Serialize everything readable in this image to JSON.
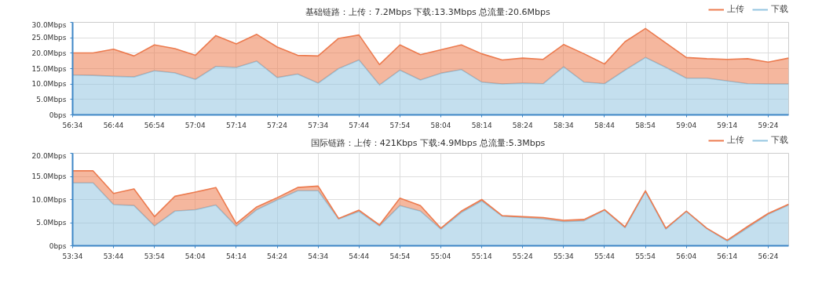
{
  "chart_data": [
    {
      "type": "area",
      "stacked": true,
      "title": "基础链路：上传：7.2Mbps  下载:13.3Mbps  总流量:20.6Mbps",
      "legend": "top right",
      "grid": true,
      "x": [
        3394,
        3399,
        3404,
        3409,
        3414,
        3419,
        3424,
        3429,
        3434,
        3439,
        3444,
        3449,
        3454,
        3459,
        3464,
        3469,
        3474,
        3479,
        3484,
        3489,
        3494,
        3499,
        3504,
        3509,
        3514,
        3519,
        3524,
        3529,
        3534,
        3539,
        3544,
        3549,
        3554,
        3559,
        3564,
        3569
      ],
      "xlim": [
        3394,
        3569
      ],
      "xticks": [
        {
          "value": 3394,
          "label": "56:34"
        },
        {
          "value": 3404,
          "label": "56:44"
        },
        {
          "value": 3414,
          "label": "56:54"
        },
        {
          "value": 3424,
          "label": "57:04"
        },
        {
          "value": 3434,
          "label": "57:14"
        },
        {
          "value": 3444,
          "label": "57:24"
        },
        {
          "value": 3454,
          "label": "57:34"
        },
        {
          "value": 3464,
          "label": "57:44"
        },
        {
          "value": 3474,
          "label": "57:54"
        },
        {
          "value": 3484,
          "label": "58:04"
        },
        {
          "value": 3494,
          "label": "58:14"
        },
        {
          "value": 3504,
          "label": "58:24"
        },
        {
          "value": 3514,
          "label": "58:34"
        },
        {
          "value": 3524,
          "label": "58:44"
        },
        {
          "value": 3534,
          "label": "58:54"
        },
        {
          "value": 3544,
          "label": "59:04"
        },
        {
          "value": 3554,
          "label": "59:14"
        },
        {
          "value": 3564,
          "label": "59:24"
        }
      ],
      "ylim": [
        0,
        30
      ],
      "yticks": [
        {
          "value": 0,
          "label": "0bps"
        },
        {
          "value": 5,
          "label": "5.0Mbps"
        },
        {
          "value": 10,
          "label": "10.0Mbps"
        },
        {
          "value": 15,
          "label": "15.0Mbps"
        },
        {
          "value": 20,
          "label": "20.0Mbps"
        },
        {
          "value": 25,
          "label": "25.0Mbps"
        },
        {
          "value": 30,
          "label": "30.0Mbps"
        }
      ],
      "series": [
        {
          "name": "下载",
          "color": "#93c5e0",
          "values": [
            12.9,
            12.8,
            12.5,
            12.3,
            14.3,
            13.6,
            11.5,
            15.7,
            15.4,
            17.4,
            12.1,
            13.2,
            10.3,
            15.0,
            17.8,
            9.7,
            14.5,
            11.3,
            13.5,
            14.7,
            10.6,
            10.0,
            10.3,
            10.1,
            15.6,
            10.6,
            10.1,
            14.5,
            18.6,
            15.4,
            11.9,
            11.9,
            11.0,
            10.1,
            10.0,
            10.0
          ]
        },
        {
          "name": "上传",
          "color": "#ec7b4f",
          "values": [
            7.2,
            7.3,
            8.8,
            6.8,
            8.4,
            7.9,
            7.8,
            10.0,
            7.6,
            8.7,
            9.9,
            6.1,
            8.8,
            9.8,
            8.1,
            6.6,
            8.2,
            8.2,
            7.6,
            8.0,
            9.2,
            7.8,
            8.1,
            7.9,
            7.2,
            9.2,
            6.4,
            9.2,
            9.4,
            7.9,
            6.7,
            6.3,
            7.0,
            8.1,
            7.1,
            8.4
          ]
        }
      ]
    },
    {
      "type": "area",
      "stacked": true,
      "title": "国际链路：上传：421Kbps  下载:4.9Mbps  总流量:5.3Mbps",
      "legend": "top right",
      "grid": true,
      "x": [
        3214,
        3219,
        3224,
        3229,
        3234,
        3239,
        3244,
        3249,
        3254,
        3259,
        3264,
        3269,
        3274,
        3279,
        3284,
        3289,
        3294,
        3299,
        3304,
        3309,
        3314,
        3319,
        3324,
        3329,
        3334,
        3339,
        3344,
        3349,
        3354,
        3359,
        3364,
        3369,
        3374,
        3379,
        3384,
        3389
      ],
      "xlim": [
        3214,
        3389
      ],
      "xticks": [
        {
          "value": 3214,
          "label": "53:34"
        },
        {
          "value": 3224,
          "label": "53:44"
        },
        {
          "value": 3234,
          "label": "53:54"
        },
        {
          "value": 3244,
          "label": "54:04"
        },
        {
          "value": 3254,
          "label": "54:14"
        },
        {
          "value": 3264,
          "label": "54:24"
        },
        {
          "value": 3274,
          "label": "54:34"
        },
        {
          "value": 3284,
          "label": "54:44"
        },
        {
          "value": 3294,
          "label": "54:54"
        },
        {
          "value": 3304,
          "label": "55:04"
        },
        {
          "value": 3314,
          "label": "55:14"
        },
        {
          "value": 3324,
          "label": "55:24"
        },
        {
          "value": 3334,
          "label": "55:34"
        },
        {
          "value": 3344,
          "label": "55:44"
        },
        {
          "value": 3354,
          "label": "55:54"
        },
        {
          "value": 3364,
          "label": "56:04"
        },
        {
          "value": 3374,
          "label": "56:14"
        },
        {
          "value": 3384,
          "label": "56:24"
        }
      ],
      "ylim": [
        0,
        20
      ],
      "yticks": [
        {
          "value": 0,
          "label": "0bps"
        },
        {
          "value": 5,
          "label": "5.0Mbps"
        },
        {
          "value": 10,
          "label": "10.0Mbps"
        },
        {
          "value": 15,
          "label": "15.0Mbps"
        },
        {
          "value": 20,
          "label": "20.0Mbps"
        }
      ],
      "series": [
        {
          "name": "下载",
          "color": "#93c5e0",
          "values": [
            13.6,
            13.6,
            8.9,
            8.7,
            4.3,
            7.5,
            7.8,
            8.8,
            4.2,
            7.8,
            9.9,
            11.9,
            11.9,
            5.8,
            7.4,
            4.3,
            8.7,
            7.5,
            3.6,
            7.2,
            9.7,
            6.4,
            6.1,
            5.8,
            5.2,
            5.4,
            7.7,
            3.9,
            11.7,
            3.6,
            7.4,
            3.7,
            1.0,
            3.9,
            6.8,
            8.8
          ]
        },
        {
          "name": "上传",
          "color": "#ec7b4f",
          "values": [
            2.6,
            2.6,
            2.4,
            3.6,
            2.0,
            3.2,
            3.8,
            3.8,
            0.6,
            0.6,
            0.5,
            0.7,
            1.0,
            0.1,
            0.3,
            0.2,
            1.6,
            1.2,
            0.2,
            0.3,
            0.3,
            0.1,
            0.2,
            0.3,
            0.3,
            0.3,
            0.1,
            0.2,
            0.2,
            0.2,
            0.1,
            0.1,
            0.2,
            0.3,
            0.2,
            0.2
          ]
        }
      ]
    }
  ]
}
